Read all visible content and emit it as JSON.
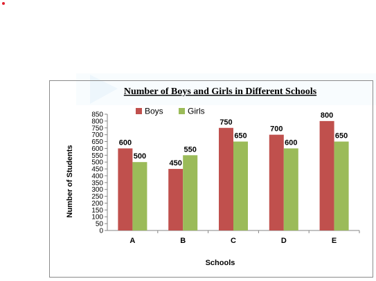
{
  "chart_data": {
    "type": "bar",
    "title": "Number of Boys and Girls in Different Schools",
    "xlabel": "Schools",
    "ylabel": "Number of Students",
    "categories": [
      "A",
      "B",
      "C",
      "D",
      "E"
    ],
    "series": [
      {
        "name": "Boys",
        "color": "#c0504d",
        "values": [
          600,
          450,
          750,
          700,
          800
        ]
      },
      {
        "name": "Girls",
        "color": "#9bbb59",
        "values": [
          500,
          550,
          650,
          600,
          650
        ]
      }
    ],
    "ylim": [
      0,
      850
    ],
    "ytick_step": 50,
    "legend_position": "top-left",
    "grid": false
  }
}
